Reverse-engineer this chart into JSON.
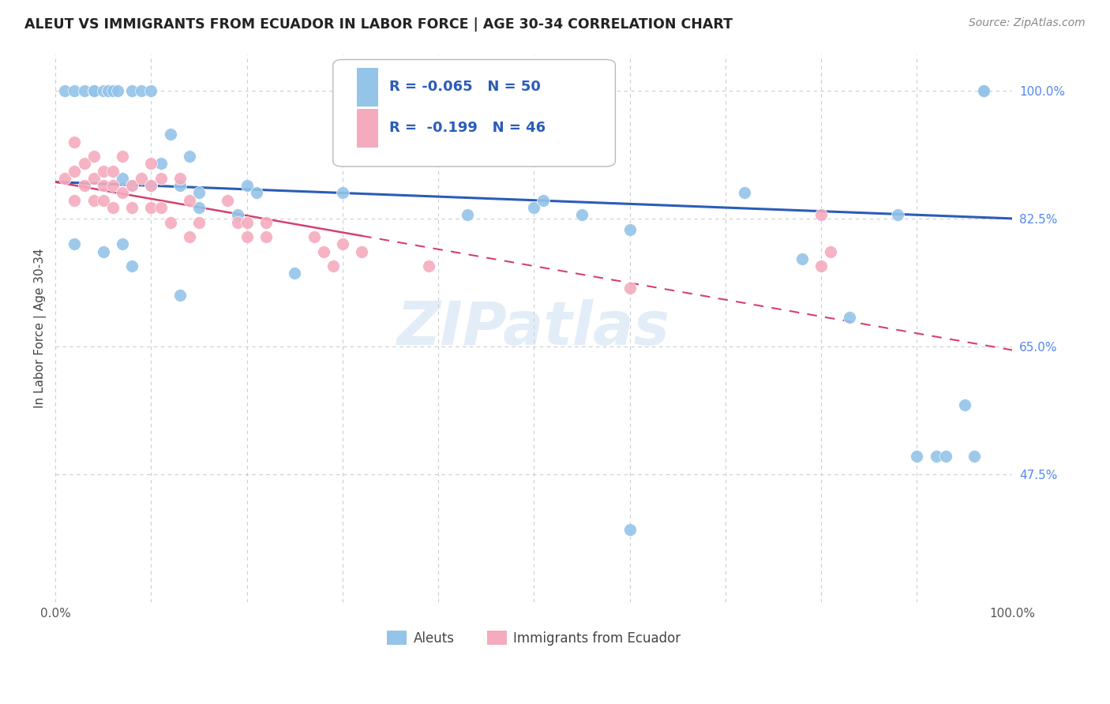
{
  "title": "ALEUT VS IMMIGRANTS FROM ECUADOR IN LABOR FORCE | AGE 30-34 CORRELATION CHART",
  "source": "Source: ZipAtlas.com",
  "ylabel": "In Labor Force | Age 30-34",
  "xlim": [
    0.0,
    1.0
  ],
  "ylim": [
    0.3,
    1.05
  ],
  "ytick_positions": [
    0.475,
    0.65,
    0.825,
    1.0
  ],
  "ytick_labels": [
    "47.5%",
    "65.0%",
    "82.5%",
    "100.0%"
  ],
  "aleut_color": "#94C4E8",
  "ecuador_color": "#F4ABBE",
  "aleut_line_color": "#2B5CB8",
  "ecuador_line_color": "#D44070",
  "watermark": "ZIPatlas",
  "legend_R_aleut": "-0.065",
  "legend_N_aleut": "50",
  "legend_R_ecuador": "-0.199",
  "legend_N_ecuador": "46",
  "aleut_x": [
    0.01,
    0.02,
    0.03,
    0.04,
    0.04,
    0.04,
    0.05,
    0.055,
    0.055,
    0.06,
    0.065,
    0.07,
    0.08,
    0.08,
    0.09,
    0.1,
    0.1,
    0.11,
    0.12,
    0.13,
    0.14,
    0.15,
    0.15,
    0.19,
    0.2,
    0.21,
    0.3,
    0.43,
    0.5,
    0.51,
    0.6,
    0.72,
    0.78,
    0.83,
    0.88,
    0.9,
    0.92,
    0.93,
    0.95,
    0.96,
    0.97,
    0.97,
    0.02,
    0.05,
    0.07,
    0.08,
    0.13,
    0.25,
    0.6,
    0.55
  ],
  "aleut_y": [
    1.0,
    1.0,
    1.0,
    1.0,
    1.0,
    1.0,
    1.0,
    1.0,
    1.0,
    1.0,
    1.0,
    0.88,
    1.0,
    0.87,
    1.0,
    1.0,
    0.87,
    0.9,
    0.94,
    0.87,
    0.91,
    0.86,
    0.84,
    0.83,
    0.87,
    0.86,
    0.86,
    0.83,
    0.84,
    0.85,
    0.81,
    0.86,
    0.77,
    0.69,
    0.83,
    0.5,
    0.5,
    0.5,
    0.57,
    0.5,
    1.0,
    1.0,
    0.79,
    0.78,
    0.79,
    0.76,
    0.72,
    0.75,
    0.4,
    0.83
  ],
  "ecuador_x": [
    0.01,
    0.02,
    0.02,
    0.02,
    0.03,
    0.03,
    0.04,
    0.04,
    0.04,
    0.05,
    0.05,
    0.05,
    0.06,
    0.06,
    0.06,
    0.07,
    0.07,
    0.08,
    0.08,
    0.09,
    0.1,
    0.1,
    0.1,
    0.11,
    0.11,
    0.12,
    0.13,
    0.14,
    0.14,
    0.15,
    0.18,
    0.19,
    0.2,
    0.2,
    0.22,
    0.22,
    0.27,
    0.28,
    0.29,
    0.3,
    0.32,
    0.39,
    0.8,
    0.6,
    0.8,
    0.81
  ],
  "ecuador_y": [
    0.88,
    0.93,
    0.89,
    0.85,
    0.9,
    0.87,
    0.91,
    0.88,
    0.85,
    0.89,
    0.87,
    0.85,
    0.89,
    0.87,
    0.84,
    0.91,
    0.86,
    0.87,
    0.84,
    0.88,
    0.9,
    0.87,
    0.84,
    0.88,
    0.84,
    0.82,
    0.88,
    0.85,
    0.8,
    0.82,
    0.85,
    0.82,
    0.82,
    0.8,
    0.82,
    0.8,
    0.8,
    0.78,
    0.76,
    0.79,
    0.78,
    0.76,
    0.76,
    0.73,
    0.83,
    0.78
  ]
}
